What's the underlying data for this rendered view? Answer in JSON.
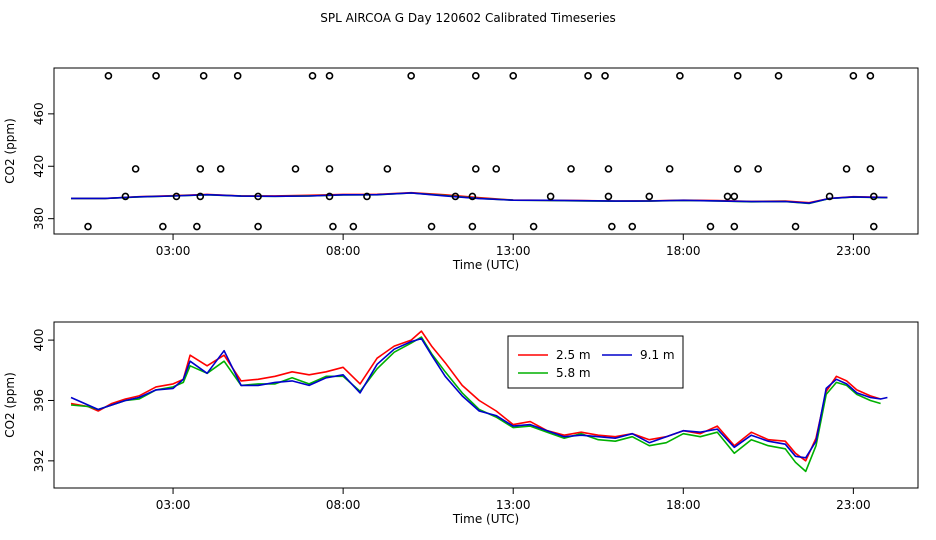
{
  "title": "SPL AIRCOA G  Day 120602  Calibrated Timeseries",
  "chart_data": [
    {
      "type": "scatter",
      "xlabel": "Time (UTC)",
      "ylabel": "CO2 (ppm)",
      "xlim": [
        -0.5,
        24.9
      ],
      "ylim": [
        368.3,
        495
      ],
      "xticks": [
        {
          "value": 3,
          "label": "03:00"
        },
        {
          "value": 8,
          "label": "08:00"
        },
        {
          "value": 13,
          "label": "13:00"
        },
        {
          "value": 18,
          "label": "18:00"
        },
        {
          "value": 23,
          "label": "23:00"
        }
      ],
      "yticks": [
        {
          "value": 380,
          "label": "380"
        },
        {
          "value": 420,
          "label": "420"
        },
        {
          "value": 460,
          "label": "460"
        }
      ],
      "calibration_points": {
        "x": [
          1.1,
          2.5,
          3.9,
          4.9,
          7.1,
          7.6,
          10.0,
          11.9,
          13.0,
          15.2,
          15.7,
          17.9,
          19.6,
          20.8,
          23.0,
          23.5,
          1.6,
          3.1,
          3.8,
          5.5,
          7.6,
          8.7,
          11.3,
          11.8,
          14.1,
          15.8,
          17.0,
          19.3,
          19.5,
          22.3,
          23.6,
          1.9,
          3.8,
          4.4,
          6.6,
          7.6,
          9.3,
          11.9,
          12.5,
          14.7,
          15.8,
          17.6,
          19.6,
          20.2,
          22.8,
          23.5,
          0.5,
          2.7,
          3.7,
          5.5,
          7.7,
          8.3,
          10.6,
          11.8,
          13.6,
          15.9,
          16.5,
          18.8,
          19.5,
          21.3,
          23.6
        ],
        "y": [
          489,
          489,
          489,
          489,
          489,
          489,
          489,
          489,
          489,
          489,
          489,
          489,
          489,
          489,
          489,
          489,
          397,
          397,
          397,
          397,
          397,
          397,
          397,
          397,
          397,
          397,
          397,
          397,
          397,
          397,
          397,
          418,
          418,
          418,
          418,
          418,
          418,
          418,
          418,
          418,
          418,
          418,
          418,
          418,
          418,
          418,
          374,
          374,
          374,
          374,
          374,
          374,
          374,
          374,
          374,
          374,
          374,
          374,
          374,
          374,
          374
        ]
      },
      "series": [
        {
          "name": "2.5 m",
          "color": "#ff0000",
          "x": [
            0,
            1,
            2,
            3,
            4,
            5,
            6,
            7,
            8,
            9,
            10,
            11,
            12,
            13,
            14,
            15,
            16,
            17,
            18,
            19,
            20,
            21,
            21.7,
            22.3,
            23,
            24
          ],
          "y": [
            395.5,
            395.5,
            396.8,
            397.5,
            398.5,
            397.4,
            397.4,
            397.8,
            398.5,
            398.6,
            399.8,
            398.2,
            396.0,
            394.2,
            394.0,
            393.9,
            393.5,
            393.6,
            394.1,
            393.8,
            393.2,
            393.4,
            392.2,
            395.5,
            396.8,
            396.2
          ]
        },
        {
          "name": "5.8 m",
          "color": "#00b000",
          "x": [
            0,
            1,
            2,
            3,
            4,
            5,
            6,
            7,
            8,
            9,
            10,
            11,
            12,
            13,
            14,
            15,
            16,
            17,
            18,
            19,
            20,
            21,
            21.7,
            22.3,
            23,
            24
          ],
          "y": [
            395.4,
            395.4,
            396.6,
            397.3,
            398.2,
            397.2,
            397.1,
            397.4,
            398.1,
            398.2,
            399.6,
            397.6,
            395.5,
            394.1,
            393.9,
            393.6,
            393.3,
            393.4,
            393.9,
            393.5,
            392.9,
            393.0,
            391.6,
            395.4,
            396.5,
            396.0
          ]
        },
        {
          "name": "9.1 m",
          "color": "#0000cc",
          "x": [
            0,
            1,
            2,
            3,
            4,
            5,
            6,
            7,
            8,
            9,
            10,
            11,
            12,
            13,
            14,
            15,
            16,
            17,
            18,
            19,
            20,
            21,
            21.7,
            22.3,
            23,
            24
          ],
          "y": [
            395.5,
            395.5,
            396.7,
            397.3,
            398.3,
            397.2,
            397.1,
            397.3,
            398.2,
            398.3,
            399.7,
            397.4,
            395.3,
            394.1,
            394.0,
            393.7,
            393.4,
            393.5,
            394.0,
            393.6,
            393.0,
            393.1,
            391.8,
            395.5,
            396.6,
            396.1
          ]
        }
      ]
    },
    {
      "type": "line",
      "xlabel": "Time (UTC)",
      "ylabel": "CO2 (ppm)",
      "xlim": [
        -0.5,
        24.9
      ],
      "ylim": [
        390.2,
        401.2
      ],
      "xticks": [
        {
          "value": 3,
          "label": "03:00"
        },
        {
          "value": 8,
          "label": "08:00"
        },
        {
          "value": 13,
          "label": "13:00"
        },
        {
          "value": 18,
          "label": "18:00"
        },
        {
          "value": 23,
          "label": "23:00"
        }
      ],
      "yticks": [
        {
          "value": 392,
          "label": "392"
        },
        {
          "value": 396,
          "label": "396"
        },
        {
          "value": 400,
          "label": "400"
        }
      ],
      "legend": {
        "placement": "top-center",
        "entries": [
          "2.5 m",
          "5.8 m",
          "9.1 m"
        ]
      },
      "series": [
        {
          "name": "2.5 m",
          "color": "#ff0000",
          "x": [
            0.0,
            0.5,
            0.8,
            1.2,
            1.6,
            2.0,
            2.5,
            3.0,
            3.3,
            3.5,
            4.0,
            4.5,
            5.0,
            5.5,
            6.0,
            6.5,
            7.0,
            7.5,
            8.0,
            8.5,
            9.0,
            9.5,
            10.0,
            10.3,
            10.6,
            11.0,
            11.5,
            12.0,
            12.5,
            13.0,
            13.5,
            14.0,
            14.5,
            15.0,
            15.5,
            16.0,
            16.5,
            17.0,
            17.5,
            18.0,
            18.5,
            19.0,
            19.5,
            20.0,
            20.5,
            21.0,
            21.3,
            21.6,
            21.9,
            22.2,
            22.5,
            22.8,
            23.1,
            23.5,
            23.8
          ],
          "y": [
            395.8,
            395.6,
            395.3,
            395.8,
            396.1,
            396.3,
            396.9,
            397.1,
            397.4,
            399.0,
            398.3,
            399.0,
            397.3,
            397.4,
            397.6,
            397.9,
            397.7,
            397.9,
            398.2,
            397.1,
            398.8,
            399.6,
            400.0,
            400.6,
            399.6,
            398.5,
            397.0,
            396.0,
            395.3,
            394.4,
            394.6,
            394.0,
            393.7,
            393.9,
            393.7,
            393.6,
            393.8,
            393.4,
            393.6,
            394.0,
            393.8,
            394.3,
            393.0,
            393.9,
            393.4,
            393.3,
            392.5,
            392.0,
            393.5,
            396.6,
            397.6,
            397.3,
            396.7,
            396.3,
            396.1
          ]
        },
        {
          "name": "5.8 m",
          "color": "#00b000",
          "x": [
            0.0,
            0.5,
            0.8,
            1.2,
            1.6,
            2.0,
            2.5,
            3.0,
            3.3,
            3.5,
            4.0,
            4.5,
            5.0,
            5.5,
            6.0,
            6.5,
            7.0,
            7.5,
            8.0,
            8.5,
            9.0,
            9.5,
            10.0,
            10.3,
            10.6,
            11.0,
            11.5,
            12.0,
            12.5,
            13.0,
            13.5,
            14.0,
            14.5,
            15.0,
            15.5,
            16.0,
            16.5,
            17.0,
            17.5,
            18.0,
            18.5,
            19.0,
            19.5,
            20.0,
            20.5,
            21.0,
            21.3,
            21.6,
            21.9,
            22.2,
            22.5,
            22.8,
            23.1,
            23.5,
            23.8
          ],
          "y": [
            395.7,
            395.6,
            395.4,
            395.7,
            396.0,
            396.1,
            396.7,
            396.9,
            397.2,
            398.3,
            397.8,
            398.6,
            397.0,
            397.1,
            397.1,
            397.5,
            397.1,
            397.6,
            397.6,
            396.6,
            398.1,
            399.2,
            399.8,
            400.2,
            399.1,
            397.9,
            396.5,
            395.4,
            394.9,
            394.2,
            394.3,
            393.9,
            393.5,
            393.8,
            393.4,
            393.3,
            393.6,
            393.0,
            393.2,
            393.8,
            393.6,
            393.9,
            392.5,
            393.4,
            393.0,
            392.8,
            391.9,
            391.3,
            393.0,
            396.4,
            397.2,
            397.0,
            396.4,
            396.0,
            395.8
          ]
        },
        {
          "name": "9.1 m",
          "color": "#0000cc",
          "x": [
            0.0,
            0.5,
            0.8,
            1.2,
            1.6,
            2.0,
            2.5,
            3.0,
            3.3,
            3.5,
            4.0,
            4.5,
            5.0,
            5.5,
            6.0,
            6.5,
            7.0,
            7.5,
            8.0,
            8.5,
            9.0,
            9.5,
            10.0,
            10.3,
            10.6,
            11.0,
            11.5,
            12.0,
            12.5,
            13.0,
            13.5,
            14.0,
            14.5,
            15.0,
            15.5,
            16.0,
            16.5,
            17.0,
            17.5,
            18.0,
            18.5,
            19.0,
            19.5,
            20.0,
            20.5,
            21.0,
            21.3,
            21.6,
            21.9,
            22.2,
            22.5,
            22.8,
            23.1,
            23.5,
            23.8,
            24.0
          ],
          "y": [
            396.2,
            395.7,
            395.4,
            395.7,
            396.0,
            396.2,
            396.7,
            396.8,
            397.4,
            398.6,
            397.8,
            399.3,
            397.0,
            397.0,
            397.2,
            397.3,
            397.0,
            397.5,
            397.7,
            396.5,
            398.4,
            399.4,
            399.9,
            400.1,
            399.0,
            397.6,
            396.3,
            395.3,
            395.0,
            394.3,
            394.4,
            394.0,
            393.6,
            393.7,
            393.6,
            393.5,
            393.8,
            393.2,
            393.6,
            394.0,
            393.9,
            394.1,
            392.9,
            393.7,
            393.3,
            393.1,
            392.3,
            392.2,
            393.3,
            396.8,
            397.4,
            397.1,
            396.5,
            396.2,
            396.1,
            396.2
          ]
        }
      ]
    }
  ]
}
